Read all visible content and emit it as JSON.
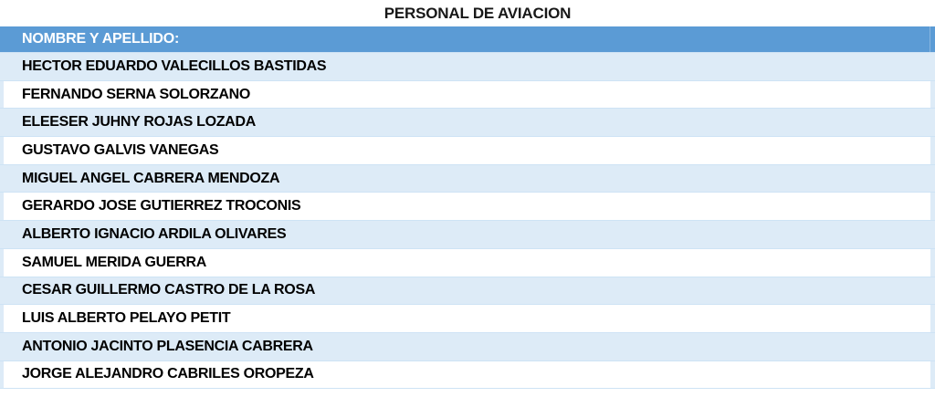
{
  "title": "PERSONAL DE AVIACION",
  "table": {
    "header": "NOMBRE Y APELLIDO:",
    "rows": [
      "HECTOR EDUARDO VALECILLOS BASTIDAS",
      "FERNANDO SERNA SOLORZANO",
      "ELEESER JUHNY ROJAS LOZADA",
      "GUSTAVO GALVIS VANEGAS",
      "MIGUEL ANGEL CABRERA MENDOZA",
      "GERARDO JOSE GUTIERREZ TROCONIS",
      "ALBERTO IGNACIO ARDILA OLIVARES",
      "SAMUEL MERIDA GUERRA",
      "CESAR GUILLERMO CASTRO DE LA ROSA",
      "LUIS ALBERTO PELAYO PETIT",
      "ANTONIO JACINTO PLASENCIA CABRERA",
      "JORGE ALEJANDRO CABRILES OROPEZA"
    ]
  },
  "colors": {
    "header_bg": "#5B9BD5",
    "header_text": "#FFFFFF",
    "band_row_bg": "#DDEBF7",
    "plain_row_bg": "#FFFFFF",
    "row_text": "#000000",
    "gridline": "#CEE3F5"
  }
}
